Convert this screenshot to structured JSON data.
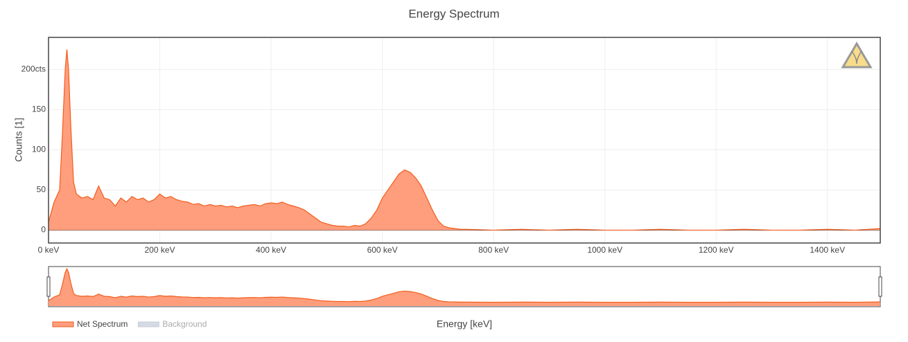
{
  "chart_data": {
    "type": "area",
    "title": "Energy Spectrum",
    "x_label": "Energy [keV]",
    "y_label": "Counts [1]",
    "xlim": [
      0,
      1495
    ],
    "ylim": [
      -16,
      240
    ],
    "xticks": [
      {
        "value": 0,
        "label": "0 keV"
      },
      {
        "value": 200,
        "label": "200 keV"
      },
      {
        "value": 400,
        "label": "400 keV"
      },
      {
        "value": 600,
        "label": "600 keV"
      },
      {
        "value": 800,
        "label": "800 keV"
      },
      {
        "value": 1000,
        "label": "1000 keV"
      },
      {
        "value": 1200,
        "label": "1200 keV"
      },
      {
        "value": 1400,
        "label": "1400 keV"
      }
    ],
    "yticks": [
      0,
      50,
      100,
      150,
      {
        "value": 200,
        "label": "200cts"
      }
    ],
    "grid": true,
    "range_slider": true,
    "x": [
      0,
      10,
      20,
      25,
      30,
      33,
      36,
      40,
      45,
      50,
      60,
      70,
      80,
      90,
      100,
      110,
      120,
      130,
      140,
      150,
      160,
      170,
      180,
      190,
      200,
      210,
      220,
      230,
      240,
      250,
      260,
      270,
      280,
      290,
      300,
      310,
      320,
      330,
      340,
      350,
      360,
      370,
      380,
      390,
      400,
      410,
      420,
      430,
      440,
      450,
      460,
      470,
      480,
      490,
      500,
      510,
      520,
      530,
      540,
      550,
      560,
      570,
      580,
      590,
      600,
      610,
      620,
      630,
      640,
      650,
      660,
      670,
      680,
      690,
      700,
      710,
      720,
      730,
      740,
      750,
      800,
      850,
      900,
      950,
      1000,
      1050,
      1100,
      1150,
      1200,
      1250,
      1300,
      1350,
      1400,
      1450,
      1495
    ],
    "series": [
      {
        "name": "Net Spectrum",
        "color": "#f25c19",
        "fill": "#ff9e7d",
        "values": [
          10,
          35,
          50,
          120,
          200,
          225,
          200,
          130,
          60,
          45,
          40,
          42,
          38,
          55,
          40,
          38,
          30,
          40,
          35,
          42,
          38,
          40,
          35,
          38,
          45,
          40,
          42,
          38,
          36,
          35,
          32,
          33,
          30,
          32,
          30,
          31,
          29,
          30,
          28,
          30,
          31,
          32,
          30,
          33,
          34,
          33,
          35,
          32,
          30,
          28,
          25,
          20,
          15,
          10,
          8,
          6,
          5,
          5,
          4,
          6,
          5,
          8,
          15,
          25,
          40,
          50,
          60,
          70,
          75,
          72,
          65,
          55,
          40,
          25,
          12,
          5,
          3,
          2,
          1,
          1,
          0,
          1,
          0,
          1,
          0,
          0,
          1,
          0,
          0,
          1,
          0,
          0,
          1,
          0,
          2
        ]
      }
    ],
    "legend": [
      {
        "name": "Net Spectrum",
        "color": "#ff9e7d",
        "visible": true
      },
      {
        "name": "Background",
        "color": "#d5dbe3",
        "visible": false
      }
    ]
  }
}
